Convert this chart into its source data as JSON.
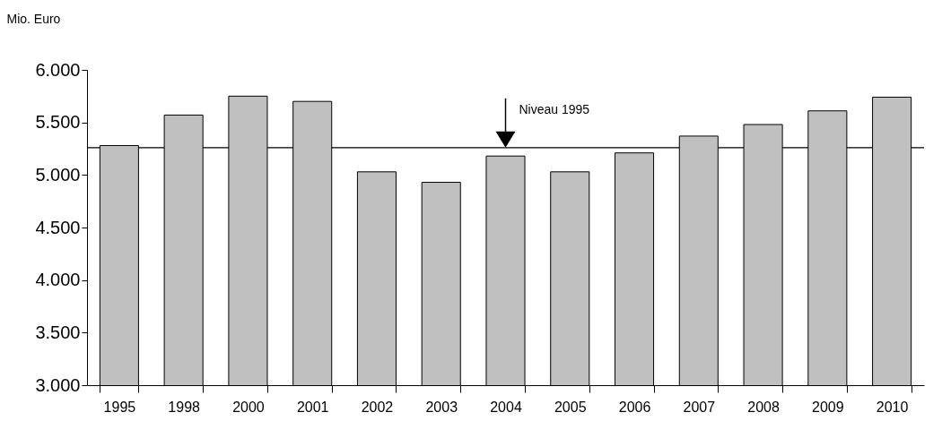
{
  "chart_data": {
    "type": "bar",
    "ylabel": "Mio. Euro",
    "categories": [
      "1995",
      "1998",
      "2000",
      "2001",
      "2002",
      "2003",
      "2004",
      "2005",
      "2006",
      "2007",
      "2008",
      "2009",
      "2010"
    ],
    "values": [
      5280,
      5570,
      5750,
      5700,
      5030,
      4930,
      5180,
      5030,
      5210,
      5370,
      5480,
      5610,
      5740
    ],
    "color": "#c0c0c0",
    "ylim": [
      3000,
      6000
    ],
    "yticks": [
      {
        "value": 3000,
        "label": "3.000"
      },
      {
        "value": 3500,
        "label": "3.500"
      },
      {
        "value": 4000,
        "label": "4.000"
      },
      {
        "value": 4500,
        "label": "4.500"
      },
      {
        "value": 5000,
        "label": "5.000"
      },
      {
        "value": 5500,
        "label": "5.500"
      },
      {
        "value": 6000,
        "label": "6.000"
      }
    ],
    "ref_lines": [
      {
        "axis": "y",
        "value": 5260,
        "color": "#000000"
      }
    ],
    "annotations": [
      {
        "text": "Niveau 1995",
        "x": "2004",
        "y": 5260
      }
    ],
    "grid": false
  }
}
